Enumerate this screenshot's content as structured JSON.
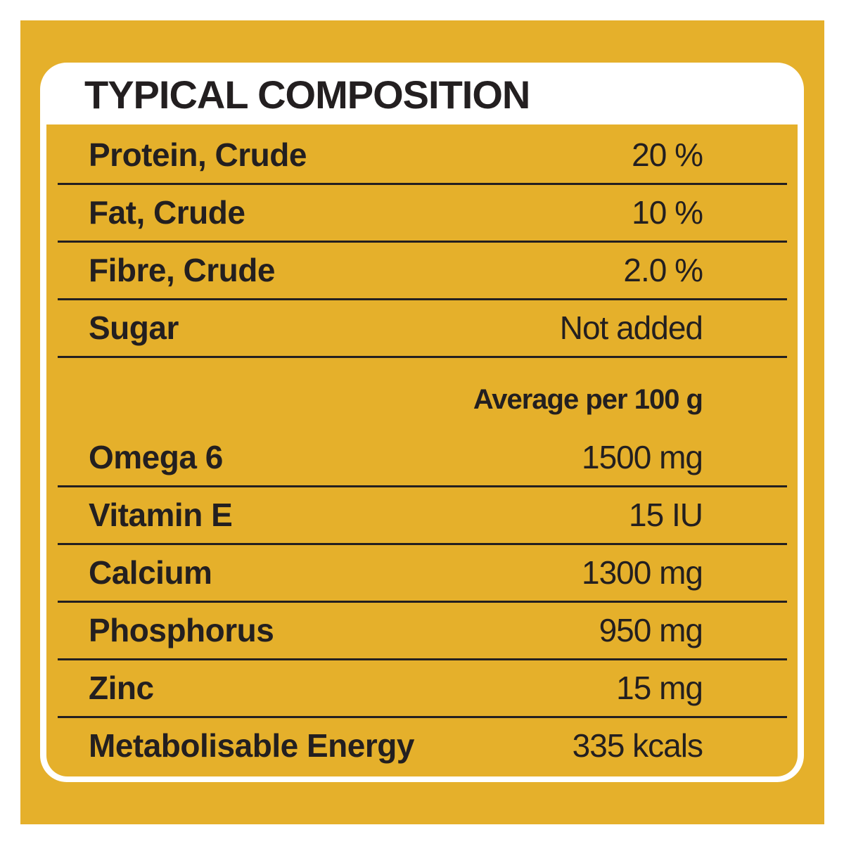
{
  "title": "TYPICAL COMPOSITION",
  "composition": [
    {
      "label": "Protein, Crude",
      "value": "20 %"
    },
    {
      "label": "Fat, Crude",
      "value": "10 %"
    },
    {
      "label": "Fibre, Crude",
      "value": "2.0 %"
    },
    {
      "label": "Sugar",
      "value": "Not added"
    }
  ],
  "additives_header": "Average per 100 g",
  "additives": [
    {
      "label": "Omega 6",
      "value": "1500 mg"
    },
    {
      "label": "Vitamin E",
      "value": "15 IU"
    },
    {
      "label": "Calcium",
      "value": "1300 mg"
    },
    {
      "label": "Phosphorus",
      "value": "950 mg"
    },
    {
      "label": "Zinc",
      "value": "15 mg"
    },
    {
      "label": "Metabolisable Energy",
      "value": "335 kcals"
    }
  ],
  "colors": {
    "panel": "#e5b02b",
    "card": "#ffffff",
    "text": "#231f20"
  }
}
